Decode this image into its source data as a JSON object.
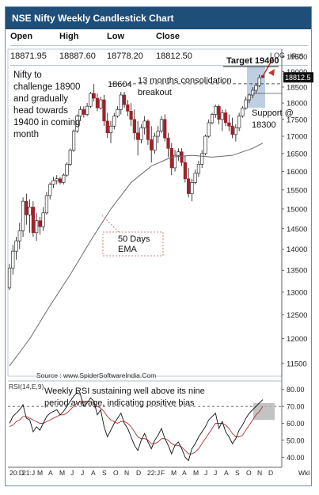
{
  "header": {
    "title": "NSE Nifty Weekly Candlestick Chart"
  },
  "ohlc": {
    "labels": [
      "Open",
      "High",
      "Low",
      "Close"
    ],
    "values": [
      "18871.95",
      "18887.60",
      "18778.20",
      "18812.50"
    ]
  },
  "chart_data": [
    {
      "type": "candlestick",
      "ylabels_right": [
        "19500",
        "19000",
        "18500",
        "18000",
        "17500",
        "17000",
        "16500",
        "16000",
        "15500",
        "15000",
        "14500",
        "14000",
        "13500",
        "13000",
        "12500",
        "12000",
        "11500"
      ],
      "ylim": [
        11250,
        19750
      ],
      "y_scale": "log",
      "scale_label": "LOG",
      "price_axis_label": "IRIS",
      "current_price_label": "18812.5",
      "xticks": [
        "20:D",
        "21:J",
        "M",
        "A",
        "M",
        "J",
        "J",
        "A",
        "S",
        "O",
        "N",
        "D",
        "22:J",
        "F",
        "M",
        "A",
        "M",
        "J",
        "J",
        "A",
        "S",
        "O",
        "N",
        "D"
      ],
      "xaxis_unit": "Wkl",
      "candles": [
        [
          13100,
          13650,
          13050,
          13550
        ],
        [
          13550,
          14100,
          13400,
          13950
        ],
        [
          13950,
          14300,
          13750,
          14200
        ],
        [
          14200,
          14650,
          14000,
          14450
        ],
        [
          14450,
          15300,
          14300,
          15200
        ],
        [
          15200,
          15400,
          14600,
          14850
        ],
        [
          14850,
          15250,
          14400,
          15050
        ],
        [
          15050,
          15200,
          14300,
          14400
        ],
        [
          14400,
          14900,
          14200,
          14700
        ],
        [
          14700,
          14800,
          14350,
          14550
        ],
        [
          14550,
          15050,
          14450,
          14900
        ],
        [
          14900,
          15450,
          14850,
          15350
        ],
        [
          15350,
          15700,
          15250,
          15650
        ],
        [
          15650,
          15850,
          15550,
          15750
        ],
        [
          15750,
          15900,
          15650,
          15800
        ],
        [
          15800,
          15850,
          15650,
          15700
        ],
        [
          15700,
          15950,
          15650,
          15900
        ],
        [
          15900,
          16250,
          15850,
          16200
        ],
        [
          16200,
          16650,
          16150,
          16600
        ],
        [
          16600,
          17200,
          16550,
          17150
        ],
        [
          17150,
          17650,
          17100,
          17600
        ],
        [
          17600,
          17900,
          17450,
          17800
        ],
        [
          17800,
          17900,
          17550,
          17650
        ],
        [
          17650,
          18000,
          17600,
          17900
        ],
        [
          17900,
          18350,
          17850,
          18300
        ],
        [
          18300,
          18604,
          18050,
          18150
        ],
        [
          18150,
          18300,
          17750,
          17850
        ],
        [
          17850,
          18200,
          17800,
          18100
        ],
        [
          18100,
          18250,
          17300,
          17450
        ],
        [
          17450,
          17700,
          16950,
          17100
        ],
        [
          17100,
          17450,
          16800,
          17300
        ],
        [
          17300,
          17700,
          17200,
          17600
        ],
        [
          17600,
          17900,
          17550,
          17800
        ],
        [
          17800,
          18350,
          17650,
          18250
        ],
        [
          18250,
          18350,
          17850,
          17950
        ],
        [
          17950,
          18100,
          17600,
          17750
        ],
        [
          17750,
          18000,
          17300,
          17500
        ],
        [
          17500,
          17800,
          16900,
          17100
        ],
        [
          17100,
          17450,
          16450,
          16900
        ],
        [
          16900,
          17350,
          16800,
          17250
        ],
        [
          17250,
          17600,
          17050,
          17450
        ],
        [
          17450,
          17500,
          16750,
          16900
        ],
        [
          16900,
          17300,
          16250,
          16600
        ],
        [
          16600,
          17100,
          16500,
          17000
        ],
        [
          17000,
          17300,
          16800,
          17150
        ],
        [
          17150,
          17600,
          17100,
          17500
        ],
        [
          17500,
          17650,
          16850,
          16950
        ],
        [
          16950,
          17100,
          16400,
          16650
        ],
        [
          16650,
          16800,
          15900,
          16100
        ],
        [
          16100,
          16600,
          16000,
          16450
        ],
        [
          16450,
          16650,
          16300,
          16550
        ],
        [
          16550,
          16650,
          16150,
          16250
        ],
        [
          16250,
          16450,
          15700,
          15800
        ],
        [
          15800,
          16100,
          15300,
          15400
        ],
        [
          15400,
          15800,
          15200,
          15700
        ],
        [
          15700,
          16050,
          15650,
          15950
        ],
        [
          15950,
          16300,
          15850,
          16200
        ],
        [
          16200,
          16600,
          16100,
          16500
        ],
        [
          16500,
          17050,
          16450,
          17000
        ],
        [
          17000,
          17500,
          16950,
          17400
        ],
        [
          17400,
          17700,
          17350,
          17650
        ],
        [
          17650,
          17950,
          17550,
          17900
        ],
        [
          17900,
          17950,
          17350,
          17500
        ],
        [
          17500,
          17800,
          17150,
          17700
        ],
        [
          17700,
          17800,
          17300,
          17400
        ],
        [
          17400,
          17650,
          17150,
          17300
        ],
        [
          17300,
          17550,
          16950,
          17050
        ],
        [
          17050,
          17350,
          16850,
          17250
        ],
        [
          17250,
          17700,
          17150,
          17600
        ],
        [
          17600,
          17900,
          17550,
          17850
        ],
        [
          17850,
          18200,
          17800,
          18100
        ],
        [
          18100,
          18300,
          18000,
          18250
        ],
        [
          18250,
          18500,
          18150,
          18400
        ],
        [
          18400,
          18600,
          18300,
          18550
        ],
        [
          18550,
          18900,
          18500,
          18800
        ],
        [
          18871.95,
          18887.6,
          18778.2,
          18812.5
        ]
      ],
      "ema_50": [
        [
          0,
          11450
        ],
        [
          6,
          12000
        ],
        [
          12,
          12700
        ],
        [
          18,
          13400
        ],
        [
          24,
          14200
        ],
        [
          30,
          15000
        ],
        [
          36,
          15700
        ],
        [
          42,
          16150
        ],
        [
          48,
          16400
        ],
        [
          54,
          16450
        ],
        [
          60,
          16400
        ],
        [
          66,
          16450
        ],
        [
          72,
          16650
        ],
        [
          75,
          16800
        ]
      ],
      "annotations": [
        {
          "text": "Nifty  to  challenge 18900 and gradually head towards 19400 in coming month"
        },
        {
          "text": "18604"
        },
        {
          "text": "13  months  consolidation breakout"
        },
        {
          "text": "Target 19400"
        },
        {
          "text": "Support @ 18300"
        },
        {
          "text": "50 Days EMA"
        },
        {
          "text": "Source : www.SpiderSoftwareIndia.Com"
        }
      ]
    },
    {
      "type": "line",
      "title": "RSI(14,E,9)",
      "annotation": "Weekly RSI sustaining well above its nine period average, indicating positive bias",
      "ylabels_right": [
        "80.00",
        "70.00",
        "60.00",
        "50.00",
        "40.00"
      ],
      "ylim": [
        35,
        85
      ],
      "series": [
        {
          "values": [
            60,
            64,
            66,
            68,
            71,
            63,
            62,
            55,
            58,
            56,
            60,
            64,
            66,
            67,
            68,
            65,
            67,
            70,
            73,
            76,
            78,
            77,
            70,
            72,
            75,
            73,
            65,
            68,
            58,
            52,
            56,
            60,
            63,
            66,
            60,
            57,
            52,
            47,
            44,
            50,
            54,
            49,
            45,
            50,
            53,
            57,
            51,
            47,
            42,
            47,
            49,
            45,
            40,
            38,
            45,
            48,
            52,
            55,
            58,
            62,
            64,
            66,
            57,
            61,
            55,
            52,
            48,
            51,
            56,
            59,
            63,
            66,
            68,
            70,
            72,
            74
          ]
        },
        {
          "values": [
            58,
            59,
            61,
            62,
            64,
            64,
            63,
            62,
            61,
            60,
            60,
            61,
            62,
            63,
            64,
            65,
            65,
            66,
            68,
            70,
            72,
            73,
            73,
            73,
            73,
            72,
            70,
            69,
            67,
            64,
            62,
            61,
            60,
            61,
            61,
            60,
            58,
            55,
            52,
            51,
            51,
            50,
            48,
            48,
            49,
            51,
            51,
            50,
            48,
            47,
            47,
            46,
            44,
            42,
            42,
            43,
            45,
            48,
            51,
            54,
            57,
            60,
            60,
            60,
            59,
            57,
            54,
            52,
            52,
            53,
            56,
            59,
            62,
            65,
            67,
            70
          ]
        }
      ]
    }
  ],
  "colors": {
    "title_bg": "#1f4e79",
    "up": "#ffffff",
    "down": "#a0202a",
    "ema": "#6a6a6a",
    "rsi": "#111111",
    "rsi_avg": "#b0303a",
    "target_arrow": "#c0392b",
    "highlight": "#8aa8c8"
  }
}
